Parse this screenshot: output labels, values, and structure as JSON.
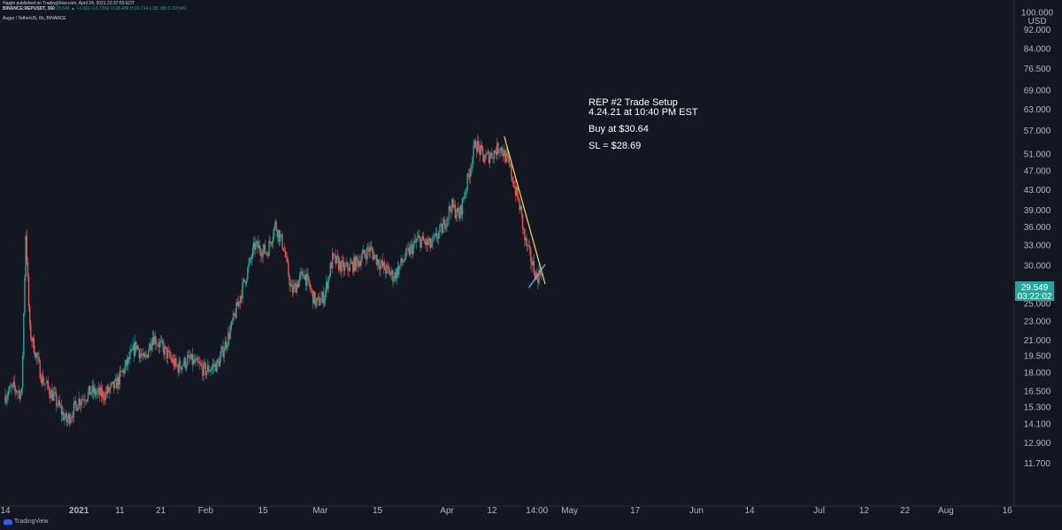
{
  "header": {
    "line1": "Haejin published on TradingView.com, April 24, 2021 22:37:59 EDT",
    "line2_symbol": "BINANCE:REPUSDT, 360",
    "line2_values": "29.549 ▲ +1.061 (+3.72%) O:28.488 H:29.714 L:28.198 C:29.549"
  },
  "subtitle": "Augur / TetherUS, 6h, BINANCE",
  "footer": {
    "brand": "TradingView"
  },
  "colors": {
    "bg": "#131722",
    "up": "#26a69a",
    "down": "#ef5350",
    "trend_yellow": "#f5e14a",
    "trend_teal": "#4fc3f7"
  },
  "chart_data": {
    "type": "candlestick",
    "title": "Augur / TetherUS, 6h, BINANCE",
    "y_unit": "USD",
    "y_scale": "log",
    "y_ticks": [
      "100.000",
      "92.000",
      "84.000",
      "76.500",
      "69.000",
      "63.000",
      "57.000",
      "51.000",
      "47.000",
      "43.000",
      "39.000",
      "36.000",
      "33.000",
      "30.000",
      "27.000",
      "25.000",
      "23.000",
      "21.000",
      "19.500",
      "18.000",
      "16.500",
      "15.300",
      "14.100",
      "12.900",
      "11.700"
    ],
    "y_tick_values": [
      100,
      92,
      84,
      76.5,
      69,
      63,
      57,
      51,
      47,
      43,
      39,
      36,
      33,
      30,
      27,
      25,
      23,
      21,
      19.5,
      18,
      16.5,
      15.3,
      14.1,
      12.9,
      11.7
    ],
    "ylim": [
      10.4,
      104
    ],
    "x_ticks": [
      "14",
      "2021",
      "11",
      "21",
      "Feb",
      "15",
      "Mar",
      "15",
      "Apr",
      "12",
      "14:00",
      "May",
      "17",
      "Jun",
      "14",
      "Jul",
      "12",
      "22",
      "Aug",
      "16"
    ],
    "x_tick_dates": [
      "2020-12-14",
      "2021-01-01",
      "2021-01-11",
      "2021-01-21",
      "2021-02-01",
      "2021-02-15",
      "2021-03-01",
      "2021-03-15",
      "2021-04-01",
      "2021-04-12",
      "2021-04-23",
      "2021-05-01",
      "2021-05-17",
      "2021-06-01",
      "2021-06-14",
      "2021-07-01",
      "2021-07-12",
      "2021-07-22",
      "2021-08-01",
      "2021-08-16"
    ],
    "xlim": [
      "2020-12-14",
      "2021-08-19"
    ],
    "price_label": {
      "value": "29.549",
      "countdown": "03:22:02"
    },
    "price_points": [
      [
        "2020-12-14",
        16.2
      ],
      [
        "2020-12-16",
        16.8
      ],
      [
        "2020-12-18",
        16.3
      ],
      [
        "2020-12-19",
        35.0
      ],
      [
        "2020-12-20",
        22.0
      ],
      [
        "2020-12-23",
        17.5
      ],
      [
        "2020-12-26",
        16.0
      ],
      [
        "2020-12-29",
        14.3
      ],
      [
        "2021-01-01",
        15.8
      ],
      [
        "2021-01-04",
        16.5
      ],
      [
        "2021-01-07",
        16.2
      ],
      [
        "2021-01-10",
        17.0
      ],
      [
        "2021-01-13",
        19.0
      ],
      [
        "2021-01-15",
        20.6
      ],
      [
        "2021-01-17",
        19.0
      ],
      [
        "2021-01-19",
        21.5
      ],
      [
        "2021-01-22",
        20.0
      ],
      [
        "2021-01-25",
        18.5
      ],
      [
        "2021-01-28",
        19.2
      ],
      [
        "2021-02-01",
        18.2
      ],
      [
        "2021-02-04",
        18.8
      ],
      [
        "2021-02-07",
        22.0
      ],
      [
        "2021-02-10",
        27.0
      ],
      [
        "2021-02-13",
        33.0
      ],
      [
        "2021-02-16",
        32.0
      ],
      [
        "2021-02-18",
        36.5
      ],
      [
        "2021-02-20",
        33.0
      ],
      [
        "2021-02-22",
        26.5
      ],
      [
        "2021-02-25",
        29.0
      ],
      [
        "2021-02-28",
        25.0
      ],
      [
        "2021-03-02",
        26.0
      ],
      [
        "2021-03-04",
        31.0
      ],
      [
        "2021-03-07",
        29.5
      ],
      [
        "2021-03-10",
        30.5
      ],
      [
        "2021-03-13",
        32.5
      ],
      [
        "2021-03-16",
        30.0
      ],
      [
        "2021-03-19",
        28.5
      ],
      [
        "2021-03-22",
        31.5
      ],
      [
        "2021-03-25",
        34.0
      ],
      [
        "2021-03-28",
        33.0
      ],
      [
        "2021-03-31",
        36.0
      ],
      [
        "2021-04-02",
        40.0
      ],
      [
        "2021-04-04",
        38.0
      ],
      [
        "2021-04-06",
        45.0
      ],
      [
        "2021-04-08",
        54.0
      ],
      [
        "2021-04-10",
        50.0
      ],
      [
        "2021-04-12",
        51.0
      ],
      [
        "2021-04-14",
        53.0
      ],
      [
        "2021-04-16",
        49.0
      ],
      [
        "2021-04-17",
        45.5
      ],
      [
        "2021-04-19",
        39.0
      ],
      [
        "2021-04-20",
        34.0
      ],
      [
        "2021-04-22",
        30.0
      ],
      [
        "2021-04-23",
        28.2
      ],
      [
        "2021-04-24",
        29.5
      ]
    ],
    "trendlines": [
      {
        "color": "yellow",
        "from": [
          "2021-04-15",
          55.5
        ],
        "to": [
          "2021-04-25",
          27.5
        ]
      },
      {
        "color": "teal",
        "from": [
          "2021-04-21",
          27.0
        ],
        "to": [
          "2021-04-25",
          30.2
        ]
      }
    ],
    "annotation": {
      "lines": [
        "REP #2 Trade Setup",
        "4.24.21 at 10:40 PM EST",
        "Buy at $30.64",
        "SL = $28.69"
      ]
    }
  }
}
